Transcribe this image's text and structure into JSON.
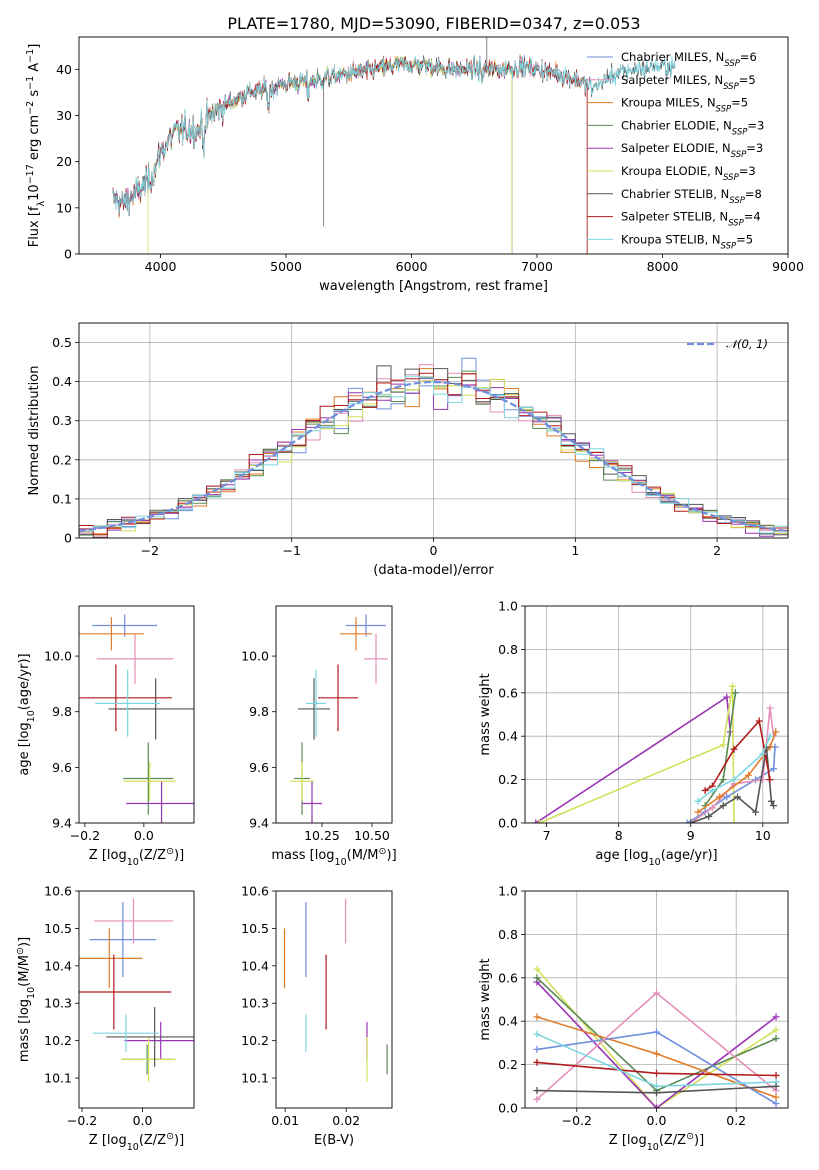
{
  "title": "PLATE=1780, MJD=53090, FIBERID=0347, z=0.053",
  "colors": {
    "Chabrier MILES": "#6f8fdc",
    "Salpeter MILES": "#e58fb9",
    "Kroupa MILES": "#e07d2a",
    "Chabrier ELODIE": "#5a8a55",
    "Salpeter ELODIE": "#9a35b5",
    "Kroupa ELODIE": "#d4e05a",
    "Chabrier STELIB": "#555555",
    "Salpeter STELIB": "#b01c1c",
    "Kroupa STELIB": "#7dd6e0"
  },
  "legend": [
    {
      "name": "Chabrier MILES",
      "nssp": "6"
    },
    {
      "name": "Salpeter MILES",
      "nssp": "5"
    },
    {
      "name": "Kroupa MILES",
      "nssp": "5"
    },
    {
      "name": "Chabrier ELODIE",
      "nssp": "3"
    },
    {
      "name": "Salpeter ELODIE",
      "nssp": "3"
    },
    {
      "name": "Kroupa ELODIE",
      "nssp": "3"
    },
    {
      "name": "Chabrier STELIB",
      "nssp": "8"
    },
    {
      "name": "Salpeter STELIB",
      "nssp": "4"
    },
    {
      "name": "Kroupa STELIB",
      "nssp": "5"
    }
  ],
  "chart_data": [
    {
      "id": "spectrum",
      "type": "line",
      "xlabel": "wavelength [Angstrom, rest frame]",
      "ylabel_parts": [
        "Flux [f",
        "λ",
        "10",
        "−17",
        " erg cm",
        "−2",
        " s",
        "−1",
        " A",
        "−1",
        "]"
      ],
      "xlim": [
        3350,
        9000
      ],
      "ylim": [
        0,
        47
      ],
      "xticks": [
        4000,
        5000,
        6000,
        7000,
        8000,
        9000
      ],
      "yticks": [
        0,
        10,
        20,
        30,
        40
      ],
      "legend_location": "right",
      "continuum_anchors": [
        [
          3620,
          12
        ],
        [
          3700,
          11
        ],
        [
          3800,
          13
        ],
        [
          3900,
          15.5
        ],
        [
          3950,
          18
        ],
        [
          4000,
          22
        ],
        [
          4050,
          24
        ],
        [
          4100,
          26
        ],
        [
          4200,
          27
        ],
        [
          4300,
          27
        ],
        [
          4400,
          30
        ],
        [
          4500,
          32
        ],
        [
          4700,
          35
        ],
        [
          4900,
          36
        ],
        [
          5000,
          37
        ],
        [
          5200,
          37.5
        ],
        [
          5300,
          38
        ],
        [
          5500,
          39
        ],
        [
          5700,
          40
        ],
        [
          5900,
          41
        ],
        [
          6100,
          41
        ],
        [
          6300,
          40
        ],
        [
          6500,
          40
        ],
        [
          6700,
          40
        ],
        [
          6900,
          40.5
        ],
        [
          7100,
          39.5
        ],
        [
          7300,
          38
        ],
        [
          7450,
          36
        ],
        [
          7600,
          38.5
        ],
        [
          7750,
          40
        ],
        [
          7900,
          40.5
        ],
        [
          8000,
          40.5
        ],
        [
          8100,
          40.5
        ]
      ],
      "series_ranges": [
        {
          "name": "Chabrier MILES",
          "x_start": 3620,
          "x_end": 7400
        },
        {
          "name": "Salpeter MILES",
          "x_start": 3620,
          "x_end": 7400
        },
        {
          "name": "Kroupa MILES",
          "x_start": 3620,
          "x_end": 7400
        },
        {
          "name": "Chabrier ELODIE",
          "x_start": 3620,
          "x_end": 6800
        },
        {
          "name": "Salpeter ELODIE",
          "x_start": 3620,
          "x_end": 6800
        },
        {
          "name": "Kroupa ELODIE",
          "x_start": 3900,
          "x_end": 6800
        },
        {
          "name": "Chabrier STELIB",
          "x_start": 3620,
          "x_end": 8100
        },
        {
          "name": "Salpeter STELIB",
          "x_start": 3620,
          "x_end": 7400
        },
        {
          "name": "Kroupa STELIB",
          "x_start": 3620,
          "x_end": 8100
        }
      ]
    },
    {
      "id": "residuals",
      "type": "line",
      "xlabel": "(data-model)/error",
      "ylabel": "Normed distribution",
      "xlim": [
        -2.5,
        2.5
      ],
      "ylim": [
        0,
        0.55
      ],
      "xticks": [
        -2,
        -1,
        0,
        1,
        2
      ],
      "yticks": [
        0.0,
        0.1,
        0.2,
        0.3,
        0.4,
        0.5
      ],
      "grid": true,
      "legend_location": "top-right",
      "gaussian_label": "𝒩(0, 1)",
      "bin_width": 0.1,
      "gaussian_sigma": 1.0
    },
    {
      "id": "z-age",
      "type": "scatter",
      "xlabel_parts": [
        "Z [log",
        "10",
        "(Z/Z",
        "⊙",
        ")]"
      ],
      "ylabel_parts": [
        "age  [log",
        "10",
        "(age/yr)]"
      ],
      "xlim": [
        -0.22,
        0.17
      ],
      "ylim": [
        9.4,
        10.18
      ],
      "xticks": [
        -0.2,
        0.0
      ],
      "xticklabels": [
        "−0.2",
        "0.0"
      ],
      "yticks": [
        9.4,
        9.6,
        9.8,
        10.0
      ],
      "yticklabels": [
        "9.4",
        "9.6",
        "9.8",
        "10.0"
      ],
      "points": [
        {
          "name": "Chabrier MILES",
          "x": -0.065,
          "xerr": 0.11,
          "y": 10.11,
          "yerr": 0.04
        },
        {
          "name": "Salpeter MILES",
          "x": -0.03,
          "xerr": 0.13,
          "y": 9.99,
          "yerr": 0.09
        },
        {
          "name": "Kroupa MILES",
          "x": -0.11,
          "xerr": 0.11,
          "y": 10.08,
          "yerr": 0.06
        },
        {
          "name": "Chabrier ELODIE",
          "x": 0.015,
          "xerr": 0.085,
          "y": 9.56,
          "yerr": 0.13
        },
        {
          "name": "Salpeter ELODIE",
          "x": 0.06,
          "xerr": 0.12,
          "y": 9.47,
          "yerr": 0.08
        },
        {
          "name": "Kroupa ELODIE",
          "x": 0.02,
          "xerr": 0.09,
          "y": 9.55,
          "yerr": 0.07
        },
        {
          "name": "Chabrier STELIB",
          "x": 0.04,
          "xerr": 0.16,
          "y": 9.81,
          "yerr": 0.11
        },
        {
          "name": "Salpeter STELIB",
          "x": -0.095,
          "xerr": 0.19,
          "y": 9.85,
          "yerr": 0.12
        },
        {
          "name": "Kroupa STELIB",
          "x": -0.055,
          "xerr": 0.11,
          "y": 9.83,
          "yerr": 0.12
        }
      ]
    },
    {
      "id": "mass-age",
      "type": "scatter",
      "xlabel_parts": [
        "mass [log",
        "10",
        "(M/M",
        "⊙",
        ")]"
      ],
      "xlim": [
        10.02,
        10.6
      ],
      "ylim": [
        9.4,
        10.18
      ],
      "xticks": [
        10.25,
        10.5
      ],
      "xticklabels": [
        "10.25",
        "10.50"
      ],
      "yticks": [
        9.4,
        9.6,
        9.8,
        10.0
      ],
      "yticklabels": [
        "9.4",
        "9.6",
        "9.8",
        "10.0"
      ],
      "points": [
        {
          "name": "Chabrier MILES",
          "x": 10.47,
          "xerr": 0.1,
          "y": 10.11,
          "yerr": 0.04
        },
        {
          "name": "Salpeter MILES",
          "x": 10.52,
          "xerr": 0.06,
          "y": 9.99,
          "yerr": 0.09
        },
        {
          "name": "Kroupa MILES",
          "x": 10.42,
          "xerr": 0.08,
          "y": 10.08,
          "yerr": 0.06
        },
        {
          "name": "Chabrier ELODIE",
          "x": 10.15,
          "xerr": 0.04,
          "y": 9.56,
          "yerr": 0.13
        },
        {
          "name": "Salpeter ELODIE",
          "x": 10.2,
          "xerr": 0.05,
          "y": 9.47,
          "yerr": 0.08
        },
        {
          "name": "Kroupa ELODIE",
          "x": 10.15,
          "xerr": 0.06,
          "y": 9.55,
          "yerr": 0.07
        },
        {
          "name": "Chabrier STELIB",
          "x": 10.21,
          "xerr": 0.08,
          "y": 9.81,
          "yerr": 0.11
        },
        {
          "name": "Salpeter STELIB",
          "x": 10.33,
          "xerr": 0.1,
          "y": 9.85,
          "yerr": 0.12
        },
        {
          "name": "Kroupa STELIB",
          "x": 10.22,
          "xerr": 0.05,
          "y": 9.83,
          "yerr": 0.12
        }
      ]
    },
    {
      "id": "age-weight",
      "type": "line",
      "xlabel_parts": [
        "age  [log",
        "10",
        "(age/yr)]"
      ],
      "ylabel": "mass weight",
      "xlim": [
        6.7,
        10.35
      ],
      "ylim": [
        0,
        1.0
      ],
      "xticks": [
        7,
        8,
        9,
        10
      ],
      "xticklabels": [
        "7",
        "8",
        "9",
        "10"
      ],
      "yticks": [
        0.0,
        0.2,
        0.4,
        0.6,
        0.8,
        1.0
      ],
      "yticklabels": [
        "0.0",
        "0.2",
        "0.4",
        "0.6",
        "0.8",
        "1.0"
      ],
      "grid": true,
      "series": [
        {
          "name": "Salpeter ELODIE",
          "x": [
            6.85,
            9.5,
            9.55
          ],
          "y": [
            0.0,
            0.58,
            0.42
          ]
        },
        {
          "name": "Kroupa ELODIE",
          "x": [
            6.9,
            9.45,
            9.58,
            9.6
          ],
          "y": [
            0.0,
            0.36,
            0.63,
            0.0
          ]
        },
        {
          "name": "Chabrier ELODIE",
          "x": [
            9.2,
            9.45,
            9.62
          ],
          "y": [
            0.08,
            0.2,
            0.6
          ]
        },
        {
          "name": "Chabrier MILES",
          "x": [
            8.95,
            9.2,
            9.5,
            9.9,
            10.15,
            10.17
          ],
          "y": [
            0.0,
            0.05,
            0.12,
            0.2,
            0.25,
            0.35
          ]
        },
        {
          "name": "Salpeter MILES",
          "x": [
            9.0,
            9.3,
            9.6,
            10.0,
            10.1,
            10.15
          ],
          "y": [
            0.0,
            0.07,
            0.18,
            0.2,
            0.53,
            0.4
          ]
        },
        {
          "name": "Kroupa MILES",
          "x": [
            9.1,
            9.4,
            9.8,
            10.1,
            10.18
          ],
          "y": [
            0.05,
            0.12,
            0.22,
            0.35,
            0.42
          ]
        },
        {
          "name": "Chabrier STELIB",
          "x": [
            9.0,
            9.25,
            9.45,
            9.65,
            9.9,
            10.05,
            10.12,
            10.15
          ],
          "y": [
            0.0,
            0.03,
            0.08,
            0.12,
            0.05,
            0.35,
            0.1,
            0.08
          ]
        },
        {
          "name": "Salpeter STELIB",
          "x": [
            9.2,
            9.3,
            9.6,
            9.95,
            10.1
          ],
          "y": [
            0.15,
            0.17,
            0.34,
            0.47,
            0.2
          ]
        },
        {
          "name": "Kroupa STELIB",
          "x": [
            9.1,
            9.3,
            9.6,
            10.0,
            10.1
          ],
          "y": [
            0.1,
            0.15,
            0.2,
            0.32,
            0.4
          ]
        }
      ]
    },
    {
      "id": "z-mass",
      "type": "scatter",
      "xlabel_parts": [
        "Z [log",
        "10",
        "(Z/Z",
        "⊙",
        ")]"
      ],
      "ylabel_parts": [
        "mass [log",
        "10",
        "(M/M",
        "⊙",
        ")]"
      ],
      "xlim": [
        -0.21,
        0.17
      ],
      "ylim": [
        10.02,
        10.6
      ],
      "xticks": [
        -0.2,
        0.0
      ],
      "xticklabels": [
        "−0.2",
        "0.0"
      ],
      "yticks": [
        10.1,
        10.2,
        10.3,
        10.4,
        10.5,
        10.6
      ],
      "yticklabels": [
        "10.1",
        "10.2",
        "10.3",
        "10.4",
        "10.5",
        "10.6"
      ],
      "points": [
        {
          "name": "Chabrier MILES",
          "x": -0.065,
          "xerr": 0.11,
          "y": 10.47,
          "yerr": 0.1
        },
        {
          "name": "Salpeter MILES",
          "x": -0.03,
          "xerr": 0.13,
          "y": 10.52,
          "yerr": 0.06
        },
        {
          "name": "Kroupa MILES",
          "x": -0.11,
          "xerr": 0.11,
          "y": 10.42,
          "yerr": 0.08
        },
        {
          "name": "Chabrier ELODIE",
          "x": 0.015,
          "xerr": 0.085,
          "y": 10.15,
          "yerr": 0.04
        },
        {
          "name": "Salpeter ELODIE",
          "x": 0.06,
          "xerr": 0.12,
          "y": 10.2,
          "yerr": 0.05
        },
        {
          "name": "Kroupa ELODIE",
          "x": 0.02,
          "xerr": 0.09,
          "y": 10.15,
          "yerr": 0.06
        },
        {
          "name": "Chabrier STELIB",
          "x": 0.04,
          "xerr": 0.16,
          "y": 10.21,
          "yerr": 0.08
        },
        {
          "name": "Salpeter STELIB",
          "x": -0.095,
          "xerr": 0.19,
          "y": 10.33,
          "yerr": 0.1
        },
        {
          "name": "Kroupa STELIB",
          "x": -0.055,
          "xerr": 0.11,
          "y": 10.22,
          "yerr": 0.05
        }
      ]
    },
    {
      "id": "ebv-mass",
      "type": "scatter",
      "xlabel": "E(B-V)",
      "xlim": [
        0.0085,
        0.0275
      ],
      "ylim": [
        10.02,
        10.6
      ],
      "xticks": [
        0.01,
        0.02
      ],
      "xticklabels": [
        "0.01",
        "0.02"
      ],
      "yticks": [
        10.1,
        10.2,
        10.3,
        10.4,
        10.5,
        10.6
      ],
      "yticklabels": [
        "10.1",
        "10.2",
        "10.3",
        "10.4",
        "10.5",
        "10.6"
      ],
      "points": [
        {
          "name": "Kroupa MILES",
          "x": 0.0099,
          "xerr": 0,
          "y": 10.42,
          "yerr": 0.08
        },
        {
          "name": "Chabrier MILES",
          "x": 0.0134,
          "xerr": 0,
          "y": 10.47,
          "yerr": 0.1
        },
        {
          "name": "Kroupa STELIB",
          "x": 0.0134,
          "xerr": 0,
          "y": 10.22,
          "yerr": 0.05
        },
        {
          "name": "Salpeter STELIB",
          "x": 0.0167,
          "xerr": 0,
          "y": 10.33,
          "yerr": 0.1
        },
        {
          "name": "Salpeter MILES",
          "x": 0.0199,
          "xerr": 0,
          "y": 10.52,
          "yerr": 0.06
        },
        {
          "name": "Salpeter ELODIE",
          "x": 0.0234,
          "xerr": 0,
          "y": 10.2,
          "yerr": 0.05
        },
        {
          "name": "Kroupa ELODIE",
          "x": 0.0234,
          "xerr": 0,
          "y": 10.15,
          "yerr": 0.06
        },
        {
          "name": "Chabrier ELODIE",
          "x": 0.0267,
          "xerr": 0,
          "y": 10.15,
          "yerr": 0.04
        }
      ]
    },
    {
      "id": "z-weight",
      "type": "line",
      "xlabel_parts": [
        "Z [log",
        "10",
        "(Z/Z",
        "⊙",
        ")]"
      ],
      "ylabel": "mass weight",
      "xlim": [
        -0.33,
        0.33
      ],
      "ylim": [
        0,
        1.0
      ],
      "xticks": [
        -0.2,
        0.0,
        0.2
      ],
      "xticklabels": [
        "−0.2",
        "0.0",
        "0.2"
      ],
      "yticks": [
        0.0,
        0.2,
        0.4,
        0.6,
        0.8,
        1.0
      ],
      "yticklabels": [
        "0.0",
        "0.2",
        "0.4",
        "0.6",
        "0.8",
        "1.0"
      ],
      "grid": true,
      "series": [
        {
          "name": "Kroupa ELODIE",
          "x": [
            -0.3,
            0.0,
            0.3
          ],
          "y": [
            0.64,
            0.0,
            0.36
          ]
        },
        {
          "name": "Salpeter ELODIE",
          "x": [
            -0.3,
            0.0,
            0.3
          ],
          "y": [
            0.58,
            0.0,
            0.42
          ]
        },
        {
          "name": "Chabrier ELODIE",
          "x": [
            -0.3,
            0.0,
            0.3
          ],
          "y": [
            0.6,
            0.08,
            0.32
          ]
        },
        {
          "name": "Kroupa MILES",
          "x": [
            -0.3,
            0.0,
            0.3
          ],
          "y": [
            0.42,
            0.25,
            0.05
          ]
        },
        {
          "name": "Chabrier MILES",
          "x": [
            -0.3,
            0.0,
            0.3
          ],
          "y": [
            0.27,
            0.35,
            0.02
          ]
        },
        {
          "name": "Salpeter MILES",
          "x": [
            -0.3,
            0.0,
            0.3
          ],
          "y": [
            0.04,
            0.53,
            0.08
          ]
        },
        {
          "name": "Salpeter STELIB",
          "x": [
            -0.3,
            0.0,
            0.3
          ],
          "y": [
            0.21,
            0.16,
            0.15
          ]
        },
        {
          "name": "Kroupa STELIB",
          "x": [
            -0.3,
            0.0,
            0.3
          ],
          "y": [
            0.34,
            0.1,
            0.12
          ]
        },
        {
          "name": "Chabrier STELIB",
          "x": [
            -0.3,
            0.0,
            0.3
          ],
          "y": [
            0.08,
            0.07,
            0.1
          ]
        }
      ]
    }
  ]
}
